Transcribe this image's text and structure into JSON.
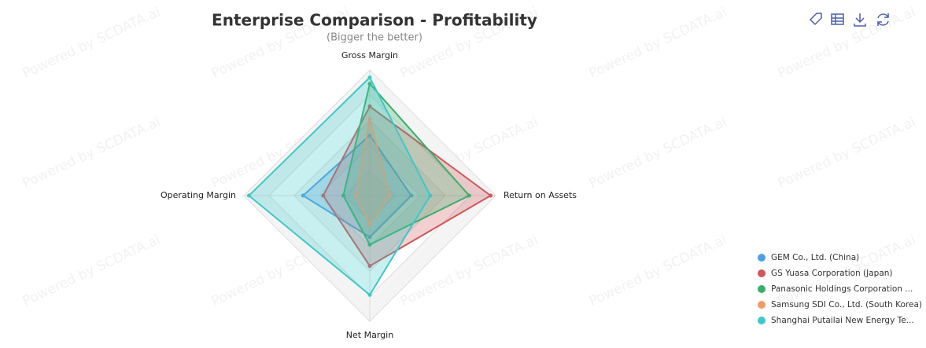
{
  "chart_data": {
    "type": "radar",
    "title": "Enterprise Comparison - Profitability",
    "subtitle": "(Bigger the better)",
    "watermark": "Powered by SCDATA.ai",
    "indicators": [
      "Gross Margin",
      "Return on Assets",
      "Net Margin",
      "Operating Margin"
    ],
    "rlim": [
      0,
      100
    ],
    "series": [
      {
        "name": "GEM Co., Ltd. (China)",
        "color": "#4f9fe8",
        "values": [
          48,
          33,
          33,
          53
        ]
      },
      {
        "name": "GS Yuasa Corporation (Japan)",
        "color": "#d0575a",
        "values": [
          71,
          96,
          56,
          37
        ]
      },
      {
        "name": "Panasonic Holdings Corporation ...",
        "color": "#3aae6a",
        "values": [
          89,
          79,
          39,
          21
        ]
      },
      {
        "name": "Samsung SDI Co., Ltd. (South Korea)",
        "color": "#f39a6c",
        "values": [
          61,
          16,
          23,
          11
        ]
      },
      {
        "name": "Shanghai Putailai New Energy Te...",
        "color": "#3ec8c8",
        "values": [
          94,
          48,
          79,
          96
        ]
      }
    ]
  }
}
